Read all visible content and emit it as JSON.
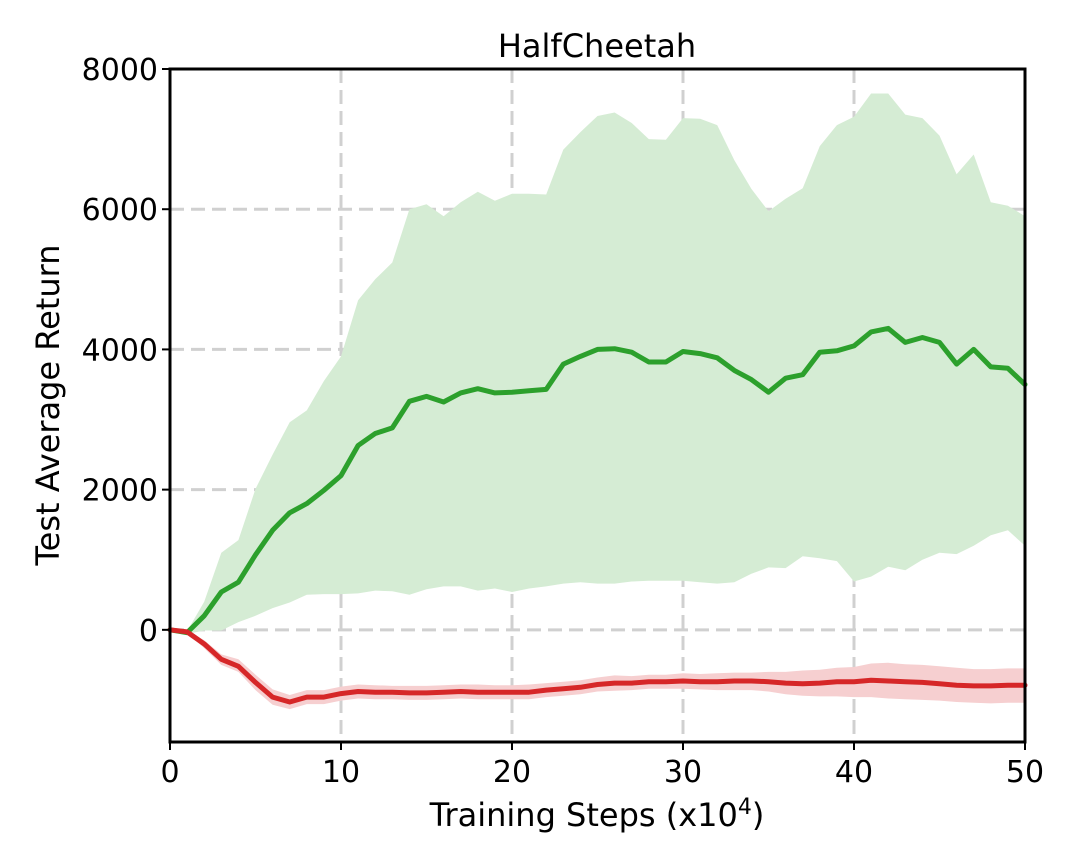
{
  "chart_data": {
    "type": "line",
    "title": "HalfCheetah",
    "xlabel_text": "Training Steps (x10",
    "xlabel_sup": "4",
    "xlabel_close": ")",
    "ylabel": "Test Average Return",
    "xlim": [
      0,
      50
    ],
    "ylim": [
      -1600,
      8000
    ],
    "xticks": [
      0,
      10,
      20,
      30,
      40,
      50
    ],
    "yticks": [
      0,
      2000,
      4000,
      6000,
      8000
    ],
    "grid": true,
    "x": [
      0,
      1,
      2,
      3,
      4,
      5,
      6,
      7,
      8,
      9,
      10,
      11,
      12,
      13,
      14,
      15,
      16,
      17,
      18,
      19,
      20,
      21,
      22,
      23,
      24,
      25,
      26,
      27,
      28,
      29,
      30,
      31,
      32,
      33,
      34,
      35,
      36,
      37,
      38,
      39,
      40,
      41,
      42,
      43,
      44,
      45,
      46,
      47,
      48,
      49,
      50
    ],
    "series": [
      {
        "color": "#2ca02c",
        "band_color": "#d5ecd4",
        "mean": [
          0,
          -40,
          200,
          540,
          680,
          1070,
          1420,
          1670,
          1800,
          1990,
          2200,
          2630,
          2800,
          2880,
          3260,
          3330,
          3250,
          3380,
          3440,
          3380,
          3390,
          3410,
          3430,
          3790,
          3900,
          4000,
          4010,
          3960,
          3820,
          3820,
          3970,
          3940,
          3880,
          3700,
          3570,
          3390,
          3590,
          3640,
          3960,
          3980,
          4050,
          4250,
          4300,
          4100,
          4170,
          4100,
          3790,
          4000,
          3750,
          3730,
          3500
        ],
        "upper": [
          0,
          -20,
          400,
          1100,
          1280,
          2010,
          2500,
          2960,
          3130,
          3550,
          3900,
          4700,
          5000,
          5240,
          6000,
          6070,
          5900,
          6100,
          6250,
          6120,
          6220,
          6220,
          6210,
          6850,
          7100,
          7330,
          7380,
          7230,
          7000,
          6990,
          7300,
          7290,
          7200,
          6700,
          6290,
          5970,
          6150,
          6300,
          6900,
          7200,
          7320,
          7650,
          7650,
          7350,
          7300,
          7050,
          6500,
          6780,
          6100,
          6050,
          5900
        ],
        "lower": [
          0,
          -60,
          -10,
          -10,
          110,
          200,
          310,
          390,
          500,
          510,
          510,
          520,
          560,
          550,
          500,
          580,
          620,
          620,
          560,
          590,
          540,
          590,
          620,
          660,
          680,
          660,
          660,
          690,
          700,
          700,
          700,
          680,
          660,
          680,
          800,
          890,
          880,
          1050,
          1020,
          980,
          690,
          760,
          900,
          850,
          1000,
          1100,
          1080,
          1200,
          1350,
          1420,
          1200
        ]
      },
      {
        "color": "#d62728",
        "band_color": "#f6cfd0",
        "mean": [
          0,
          -30,
          -200,
          -420,
          -520,
          -750,
          -960,
          -1030,
          -960,
          -960,
          -910,
          -880,
          -890,
          -890,
          -900,
          -900,
          -890,
          -880,
          -890,
          -890,
          -890,
          -890,
          -860,
          -840,
          -820,
          -780,
          -760,
          -760,
          -740,
          -740,
          -730,
          -740,
          -740,
          -730,
          -730,
          -740,
          -760,
          -770,
          -760,
          -740,
          -740,
          -720,
          -730,
          -740,
          -750,
          -770,
          -790,
          -800,
          -800,
          -790,
          -790
        ],
        "upper": [
          0,
          -10,
          -150,
          -350,
          -420,
          -640,
          -850,
          -930,
          -860,
          -860,
          -810,
          -780,
          -790,
          -800,
          -800,
          -800,
          -790,
          -780,
          -780,
          -790,
          -790,
          -780,
          -760,
          -740,
          -720,
          -680,
          -650,
          -660,
          -640,
          -640,
          -620,
          -630,
          -620,
          -610,
          -610,
          -600,
          -600,
          -580,
          -570,
          -540,
          -530,
          -480,
          -470,
          -490,
          -500,
          -520,
          -540,
          -560,
          -560,
          -550,
          -550
        ],
        "lower": [
          0,
          -50,
          -260,
          -500,
          -600,
          -860,
          -1070,
          -1130,
          -1060,
          -1060,
          -1010,
          -980,
          -990,
          -990,
          -1000,
          -1000,
          -990,
          -980,
          -990,
          -990,
          -990,
          -990,
          -960,
          -940,
          -920,
          -880,
          -870,
          -860,
          -840,
          -840,
          -840,
          -850,
          -860,
          -860,
          -860,
          -880,
          -920,
          -940,
          -950,
          -950,
          -960,
          -960,
          -980,
          -990,
          -1000,
          -1010,
          -1030,
          -1040,
          -1050,
          -1040,
          -1040
        ]
      }
    ]
  }
}
